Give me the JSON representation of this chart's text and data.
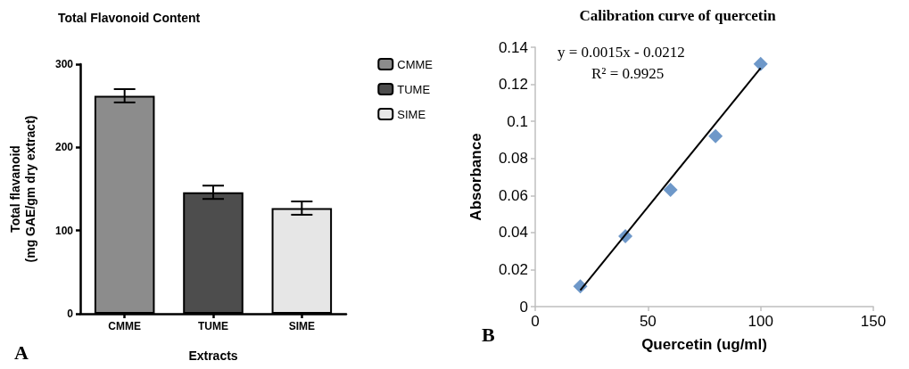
{
  "chart_data": [
    {
      "type": "bar",
      "title": "Total Flavonoid Content",
      "xlabel": "Extracts",
      "ylabel": "Total flavanoid\n(mg GAE/gm dry extract)",
      "categories": [
        "CMME",
        "TUME",
        "SIME"
      ],
      "series": [
        {
          "name": "CMME",
          "color": "#8c8c8c",
          "values": [
            262,
            null,
            null
          ],
          "errors": [
            8,
            null,
            null
          ]
        },
        {
          "name": "TUME",
          "color": "#4d4d4d",
          "values": [
            null,
            146,
            null
          ],
          "errors": [
            null,
            8,
            null
          ]
        },
        {
          "name": "SIME",
          "color": "#e6e6e6",
          "values": [
            null,
            null,
            127
          ],
          "errors": [
            null,
            null,
            8
          ]
        }
      ],
      "ylim": [
        0,
        300
      ],
      "yticks": [
        0,
        100,
        200,
        300
      ],
      "grid": false,
      "legend": "top right",
      "annotations": [
        "A"
      ]
    },
    {
      "type": "scatter",
      "title": "Calibration curve of quercetin",
      "xlabel": "Quercetin (ug/ml)",
      "ylabel": "Absorbance",
      "marker": "diamond",
      "series": [
        {
          "color": "#4a7ebb",
          "x": [
            20,
            40,
            60,
            80,
            100
          ],
          "values": [
            0.011,
            0.038,
            0.063,
            0.092,
            0.131
          ]
        },
        {
          "type": "line",
          "marker": "none",
          "color": "#000000",
          "x": [
            20,
            100
          ],
          "values": [
            0.0088,
            0.1288
          ]
        }
      ],
      "xlim": [
        0,
        150
      ],
      "xticks": [
        0,
        50,
        100,
        150
      ],
      "ylim": [
        0,
        0.14
      ],
      "yticks": [
        0,
        0.02,
        0.04,
        0.06,
        0.08,
        0.1,
        0.12,
        0.14
      ],
      "grid": false,
      "legend": false,
      "annotations": [
        "y = 0.0015x - 0.0212",
        "R² = 0.9925",
        "B"
      ]
    }
  ]
}
